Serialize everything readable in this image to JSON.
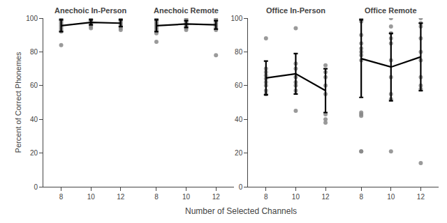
{
  "chart_data": [
    {
      "type": "scatter",
      "title": "Anechoic In-Person",
      "xlabel": "Number of Selected Channels",
      "ylabel": "Percent of Correct Phonemes",
      "xlim": [
        6.8,
        13.2
      ],
      "xticks": [
        8,
        10,
        12
      ],
      "ylim": [
        0,
        100
      ],
      "yticks": [
        0,
        20,
        40,
        60,
        80,
        100
      ],
      "grid": false,
      "series": [
        {
          "type": "scatter",
          "color": "#888888",
          "x": [
            8,
            8,
            8,
            8,
            8,
            8,
            8,
            8,
            8,
            8,
            10,
            10,
            10,
            10,
            10,
            10,
            10,
            12,
            12,
            12,
            12,
            12,
            12,
            12,
            12
          ],
          "values": [
            100,
            99,
            98,
            97,
            96,
            95,
            94,
            93,
            92,
            84,
            100,
            99,
            98,
            97,
            96,
            95,
            94,
            100,
            99,
            98,
            97,
            96,
            95,
            94,
            93
          ]
        },
        {
          "type": "line",
          "color": "#000000",
          "x": [
            8,
            10,
            12
          ],
          "values": [
            95.5,
            97.5,
            97.0
          ],
          "errors": [
            3.5,
            1.5,
            2.0
          ]
        }
      ]
    },
    {
      "type": "scatter",
      "title": "Anechoic Remote",
      "xlim": [
        6.8,
        13.2
      ],
      "xticks": [
        8,
        10,
        12
      ],
      "ylim": [
        0,
        100
      ],
      "yticks": [
        0,
        20,
        40,
        60,
        80,
        100
      ],
      "grid": false,
      "tick_labels": "x",
      "series": [
        {
          "type": "scatter",
          "color": "#888888",
          "x": [
            8,
            8,
            8,
            8,
            8,
            8,
            8,
            8,
            8,
            8,
            10,
            10,
            10,
            10,
            10,
            10,
            10,
            10,
            12,
            12,
            12,
            12,
            12,
            12,
            12,
            12,
            12
          ],
          "values": [
            100,
            99,
            98,
            97,
            96,
            95,
            94,
            93,
            91,
            86,
            100,
            99,
            98,
            97,
            96,
            95,
            94,
            93,
            100,
            99,
            98,
            97,
            96,
            95,
            94,
            93,
            78
          ]
        },
        {
          "type": "line",
          "color": "#000000",
          "x": [
            8,
            10,
            12
          ],
          "values": [
            95.5,
            96.5,
            96.0
          ],
          "errors": [
            3.5,
            2.0,
            2.5
          ]
        }
      ]
    },
    {
      "type": "scatter",
      "title": "Office In-Person",
      "xlim": [
        6.8,
        13.2
      ],
      "xticks": [
        8,
        10,
        12
      ],
      "ylim": [
        0,
        100
      ],
      "yticks": [
        0,
        20,
        40,
        60,
        80,
        100
      ],
      "grid": false,
      "series": [
        {
          "type": "scatter",
          "color": "#888888",
          "x": [
            8,
            8,
            8,
            8,
            8,
            8,
            8,
            8,
            8,
            10,
            10,
            10,
            10,
            10,
            10,
            10,
            10,
            12,
            12,
            12,
            12,
            12,
            12,
            12,
            12
          ],
          "values": [
            88,
            70,
            68,
            66,
            64,
            62,
            60,
            57,
            55,
            94,
            73,
            70,
            65,
            62,
            60,
            57,
            45,
            72,
            68,
            65,
            60,
            55,
            43,
            40,
            38
          ]
        },
        {
          "type": "line",
          "color": "#000000",
          "x": [
            8,
            10,
            12
          ],
          "values": [
            64.5,
            67.0,
            57.0
          ],
          "errors": [
            10.0,
            12.0,
            13.0
          ]
        }
      ]
    },
    {
      "type": "scatter",
      "title": "Office Remote",
      "xlim": [
        6.8,
        13.2
      ],
      "xticks": [
        8,
        10,
        12
      ],
      "ylim": [
        0,
        100
      ],
      "yticks": [
        0,
        20,
        40,
        60,
        80,
        100
      ],
      "grid": false,
      "tick_labels": "x",
      "series": [
        {
          "type": "scatter",
          "color": "#888888",
          "x": [
            8,
            8,
            8,
            8,
            8,
            8,
            8,
            8,
            8,
            8,
            8,
            8,
            8,
            10,
            10,
            10,
            10,
            10,
            10,
            10,
            10,
            10,
            10,
            12,
            12,
            12,
            12,
            12,
            12,
            12,
            12,
            12,
            12
          ],
          "values": [
            100,
            98,
            90,
            85,
            82,
            80,
            78,
            75,
            44,
            43,
            42,
            21,
            21,
            100,
            95,
            91,
            88,
            85,
            75,
            65,
            55,
            52,
            21,
            100,
            97,
            95,
            88,
            80,
            75,
            65,
            60,
            58,
            14
          ]
        },
        {
          "type": "line",
          "color": "#000000",
          "x": [
            8,
            10,
            12
          ],
          "values": [
            76.0,
            71.0,
            77.0
          ],
          "errors": [
            23.0,
            20.0,
            20.0
          ]
        }
      ]
    }
  ]
}
